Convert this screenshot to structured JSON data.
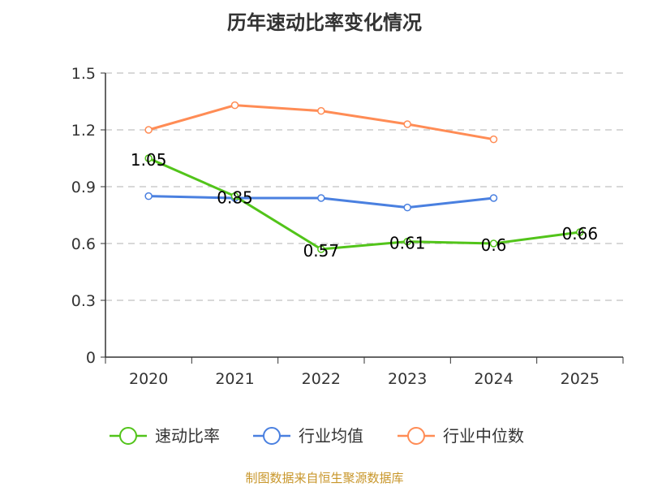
{
  "chart_data": {
    "type": "line",
    "title": "历年速动比率变化情况",
    "categories": [
      "2020",
      "2021",
      "2022",
      "2023",
      "2024",
      "2025"
    ],
    "ylim": [
      0,
      1.5
    ],
    "yticks": [
      "0",
      "0.3",
      "0.6",
      "0.9",
      "1.2",
      "1.5"
    ],
    "grid": true,
    "legend_position": "bottom",
    "series": [
      {
        "name": "速动比率",
        "color": "#52c41a",
        "values": [
          1.05,
          0.85,
          0.57,
          0.61,
          0.6,
          0.66
        ],
        "labels": [
          "1.05",
          "0.85",
          "0.57",
          "0.61",
          "0.6",
          "0.66"
        ]
      },
      {
        "name": "行业均值",
        "color": "#4a80e0",
        "values": [
          0.85,
          0.84,
          0.84,
          0.79,
          0.84,
          null
        ]
      },
      {
        "name": "行业中位数",
        "color": "#ff8c55",
        "values": [
          1.2,
          1.33,
          1.3,
          1.23,
          1.15,
          null
        ]
      }
    ]
  },
  "source": "制图数据来自恒生聚源数据库"
}
